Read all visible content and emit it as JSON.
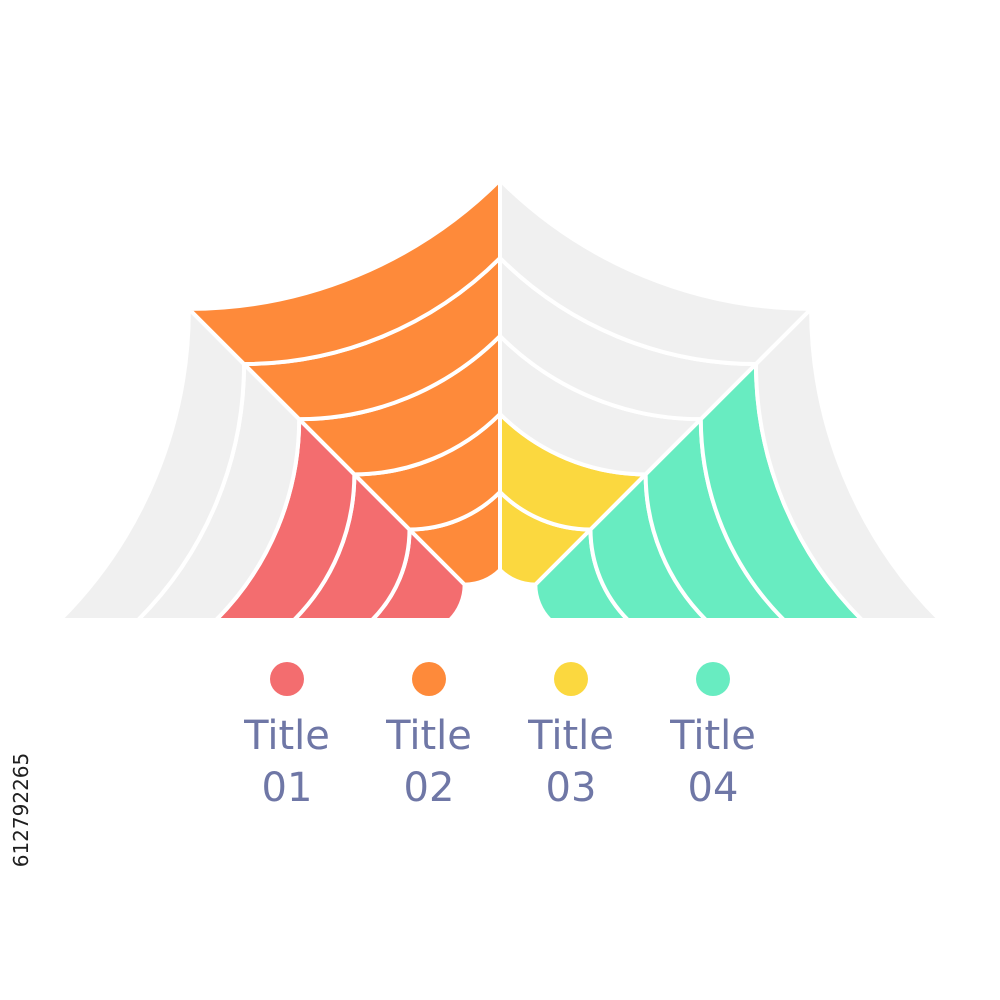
{
  "chart_data": {
    "type": "radial-bar",
    "orientation": "semicircle",
    "ring_levels": 5,
    "categories": [
      "Title 01",
      "Title 02",
      "Title 03",
      "Title 04"
    ],
    "values": [
      3,
      5,
      2,
      4
    ],
    "colors": [
      "#f36d6f",
      "#fe8a3a",
      "#fbd83f",
      "#68ecc1"
    ],
    "background_color": "#f0f0f0",
    "separator_color": "#ffffff",
    "legend": [
      {
        "line1": "Title",
        "line2": "01",
        "color": "#f36d6f"
      },
      {
        "line1": "Title",
        "line2": "02",
        "color": "#fe8a3a"
      },
      {
        "line1": "Title",
        "line2": "03",
        "color": "#fbd83f"
      },
      {
        "line1": "Title",
        "line2": "04",
        "color": "#68ecc1"
      }
    ],
    "legend_position": "bottom"
  },
  "stock_id": "612792265"
}
